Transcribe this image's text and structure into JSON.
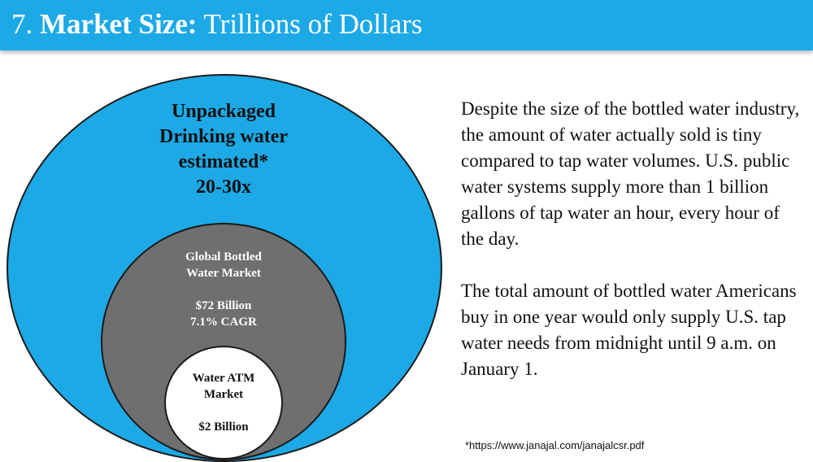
{
  "slide": {
    "title_number": "7.",
    "title_bold": "Market Size:",
    "title_rest": "Trillions of Dollars"
  },
  "diagram": {
    "outer": {
      "lines": [
        "Unpackaged",
        "Drinking water",
        "estimated*",
        "20-30x"
      ],
      "color": "#1ca9e6"
    },
    "middle": {
      "lines": [
        "Global Bottled",
        "Water Market"
      ],
      "value_lines": [
        "$72 Billion",
        "7.1% CAGR"
      ],
      "color": "#6f6f6f"
    },
    "inner": {
      "lines": [
        "Water ATM",
        "Market"
      ],
      "value_lines": [
        "$2 Billion"
      ],
      "color": "#ffffff"
    }
  },
  "body": {
    "paragraph1": "Despite the size of the bottled water industry, the amount of water actually sold is tiny compared to tap water volumes.  U.S. public water systems supply more than 1 billion gallons of tap water an hour, every hour of the day.",
    "paragraph2": "The total amount of bottled water Americans buy in one year would only supply U.S. tap water needs from midnight until 9 a.m. on January 1."
  },
  "footnote": "*https://www.janajal.com/janajalcsr.pdf"
}
